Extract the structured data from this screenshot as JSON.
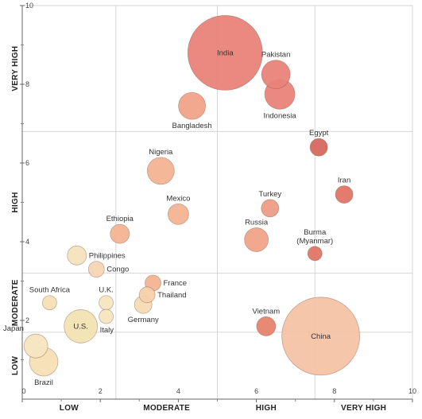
{
  "chart_data": {
    "type": "scatter",
    "title": "",
    "xlabel": "",
    "ylabel": "",
    "xlim": [
      0,
      10
    ],
    "ylim": [
      0,
      10
    ],
    "grid": true,
    "x_ticks": [
      0,
      2,
      4,
      6,
      8,
      10
    ],
    "y_ticks": [
      2,
      4,
      6,
      8,
      10
    ],
    "x_bands": [
      {
        "label": "LOW",
        "from": 0,
        "to": 2.4
      },
      {
        "label": "MODERATE",
        "from": 2.4,
        "to": 5
      },
      {
        "label": "HIGH",
        "from": 5,
        "to": 7.5
      },
      {
        "label": "VERY HIGH",
        "from": 7.5,
        "to": 10
      }
    ],
    "y_bands": [
      {
        "label": "LOW",
        "from": 0,
        "to": 1.7
      },
      {
        "label": "MODERATE",
        "from": 1.7,
        "to": 3.2
      },
      {
        "label": "HIGH",
        "from": 3.2,
        "to": 6.8
      },
      {
        "label": "VERY HIGH",
        "from": 6.8,
        "to": 10
      }
    ],
    "points": [
      {
        "label": "India",
        "x": 5.2,
        "y": 8.8,
        "size": 47,
        "color": "#e9837a",
        "label_pos": "inside"
      },
      {
        "label": "China",
        "x": 7.65,
        "y": 1.6,
        "size": 49,
        "color": "#f6c3a6",
        "label_pos": "inside"
      },
      {
        "label": "U.S.",
        "x": 1.5,
        "y": 1.85,
        "size": 21,
        "color": "#f3e3b4",
        "label_pos": "inside"
      },
      {
        "label": "Pakistan",
        "x": 6.5,
        "y": 8.25,
        "size": 18,
        "color": "#e9837a",
        "label_pos": "above"
      },
      {
        "label": "Indonesia",
        "x": 6.6,
        "y": 7.75,
        "size": 19,
        "color": "#e9837a",
        "label_pos": "below"
      },
      {
        "label": "Bangladesh",
        "x": 4.35,
        "y": 7.45,
        "size": 17,
        "color": "#f2a488",
        "label_pos": "below"
      },
      {
        "label": "Egypt",
        "x": 7.6,
        "y": 6.4,
        "size": 11,
        "color": "#d6695f",
        "label_pos": "above"
      },
      {
        "label": "Nigeria",
        "x": 3.55,
        "y": 5.8,
        "size": 17,
        "color": "#f4b594",
        "label_pos": "above"
      },
      {
        "label": "Iran",
        "x": 8.25,
        "y": 5.2,
        "size": 11,
        "color": "#e17567",
        "label_pos": "above"
      },
      {
        "label": "Mexico",
        "x": 4.0,
        "y": 4.7,
        "size": 13,
        "color": "#f4b594",
        "label_pos": "above"
      },
      {
        "label": "Turkey",
        "x": 6.35,
        "y": 4.85,
        "size": 11,
        "color": "#ee9d85",
        "label_pos": "above"
      },
      {
        "label": "Russia",
        "x": 6.0,
        "y": 4.05,
        "size": 15,
        "color": "#f2a488",
        "label_pos": "above"
      },
      {
        "label": "Ethiopia",
        "x": 2.5,
        "y": 4.2,
        "size": 12,
        "color": "#f4b594",
        "label_pos": "above"
      },
      {
        "label": "Burma",
        "label2": "(Myanmar)",
        "x": 7.5,
        "y": 3.7,
        "size": 9,
        "color": "#e17567",
        "label_pos": "above"
      },
      {
        "label": "Philippines",
        "x": 1.4,
        "y": 3.65,
        "size": 12,
        "color": "#f6e3be",
        "label_pos": "right"
      },
      {
        "label": "Congo",
        "x": 1.9,
        "y": 3.3,
        "size": 10,
        "color": "#f6d6b6",
        "label_pos": "right"
      },
      {
        "label": "France",
        "x": 3.35,
        "y": 2.95,
        "size": 10,
        "color": "#f4b594",
        "label_pos": "right"
      },
      {
        "label": "Thailand",
        "x": 3.2,
        "y": 2.65,
        "size": 10,
        "color": "#f6d0aa",
        "label_pos": "right"
      },
      {
        "label": "Germany",
        "x": 3.1,
        "y": 2.4,
        "size": 11,
        "color": "#f6dcb5",
        "label_pos": "below"
      },
      {
        "label": "U.K.",
        "x": 2.15,
        "y": 2.45,
        "size": 9,
        "color": "#f6e6bf",
        "label_pos": "above"
      },
      {
        "label": "Italy",
        "x": 2.15,
        "y": 2.1,
        "size": 9,
        "color": "#f6e6bf",
        "label_pos": "below-right"
      },
      {
        "label": "South Africa",
        "x": 0.7,
        "y": 2.45,
        "size": 9,
        "color": "#f6e0b6",
        "label_pos": "above"
      },
      {
        "label": "Vietnam",
        "x": 6.25,
        "y": 1.85,
        "size": 12,
        "color": "#e6836c",
        "label_pos": "above"
      },
      {
        "label": "Japan",
        "x": 0.35,
        "y": 1.35,
        "size": 15,
        "color": "#f6e6bf",
        "label_pos": "above-left"
      },
      {
        "label": "Brazil",
        "x": 0.55,
        "y": 0.95,
        "size": 18,
        "color": "#f6e0b6",
        "label_pos": "below"
      }
    ]
  }
}
